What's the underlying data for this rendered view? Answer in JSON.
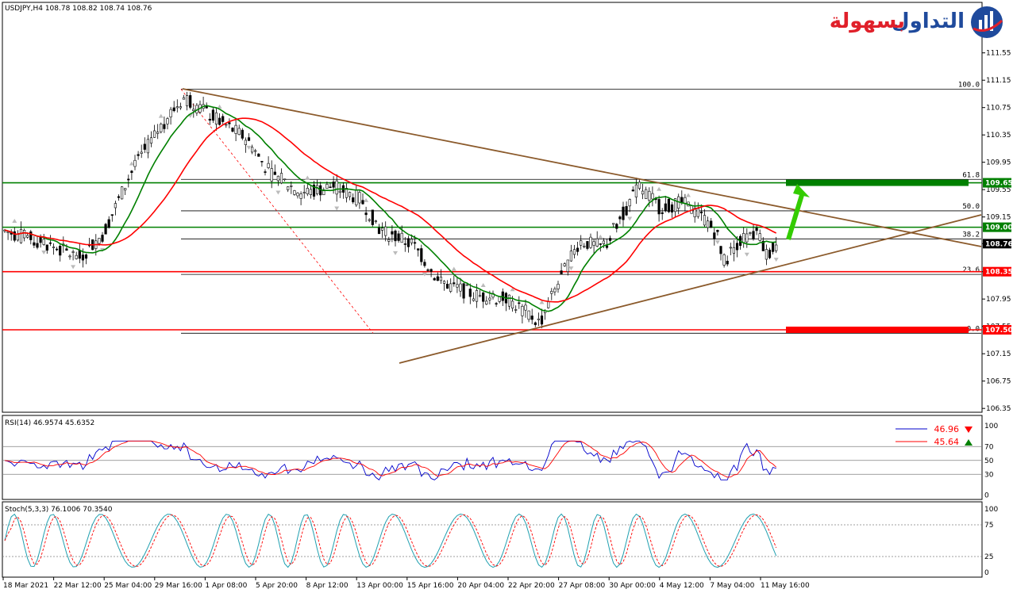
{
  "header": {
    "symbol_line": "USDJPY,H4  108.78 108.82 108.74 108.76",
    "rsi_line": "RSI(14) 46.9574 45.6352",
    "stoch_line": "Stoch(5,3,3) 76.1006 70.3540"
  },
  "logo": {
    "brand_part1": "التداول",
    "brand_part2": "بسهولة",
    "color_red": "#e0202a",
    "color_blue": "#1f4a9c"
  },
  "colors": {
    "green_line": "#008000",
    "red_line": "#ff0000",
    "trend": "#8b5a2b",
    "arrow": "#33cc00",
    "rsi_blue": "#0000cc",
    "rsi_red": "#ff0000",
    "stoch_main": "#20a0b0",
    "stoch_signal": "#ff0000"
  },
  "chart_data": {
    "type": "candlestick",
    "symbol": "USDJPY",
    "timeframe": "H4",
    "ohlc_current": {
      "open": 108.78,
      "high": 108.82,
      "low": 108.74,
      "close": 108.76
    },
    "ylim": [
      106.3,
      111.6
    ],
    "price_ticks": [
      "111.55",
      "111.15",
      "110.75",
      "110.35",
      "109.95",
      "109.55",
      "109.15",
      "108.76",
      "108.35",
      "107.95",
      "107.55",
      "107.15",
      "106.75",
      "106.35"
    ],
    "time_labels": [
      "18 Mar 2021",
      "22 Mar 12:00",
      "25 Mar 04:00",
      "29 Mar 16:00",
      "1 Apr 08:00",
      "5 Apr 20:00",
      "8 Apr 12:00",
      "13 Apr 00:00",
      "15 Apr 16:00",
      "20 Apr 04:00",
      "22 Apr 20:00",
      "27 Apr 08:00",
      "30 Apr 00:00",
      "4 May 12:00",
      "7 May 04:00",
      "11 May 16:00"
    ],
    "fib_levels": [
      {
        "label": "100.0",
        "price": 111.02
      },
      {
        "label": "61.8",
        "price": 109.7
      },
      {
        "label": "50.0",
        "price": 109.24
      },
      {
        "label": "38.2",
        "price": 108.83
      },
      {
        "label": "23.6",
        "price": 108.31
      },
      {
        "label": "0.0",
        "price": 107.45
      }
    ],
    "horizontal_levels": [
      {
        "price": 109.65,
        "tag": "109.65",
        "color": "#008000"
      },
      {
        "price": 109.0,
        "tag": "109.00",
        "color": "#008000"
      },
      {
        "price": 108.76,
        "tag": "108.76",
        "color": "#000000",
        "current": true
      },
      {
        "price": 108.35,
        "tag": "108.35",
        "color": "#ff0000"
      },
      {
        "price": 107.5,
        "tag": "107.50",
        "color": "#ff0000"
      }
    ],
    "rsi": {
      "name": "RSI(14)",
      "value": 46.9574,
      "signal": 45.6352,
      "levels": [
        70,
        50,
        30
      ],
      "ticks": [
        "100",
        "70",
        "50",
        "30",
        "0"
      ],
      "badges": [
        {
          "text": "46.96",
          "arrow": "down"
        },
        {
          "text": "45.64",
          "arrow": "up"
        }
      ]
    },
    "stochastic": {
      "name": "Stoch(5,3,3)",
      "k": 76.1006,
      "d": 70.354,
      "levels": [
        75,
        25
      ],
      "ticks": [
        "100",
        "75",
        "25",
        "0"
      ]
    }
  }
}
